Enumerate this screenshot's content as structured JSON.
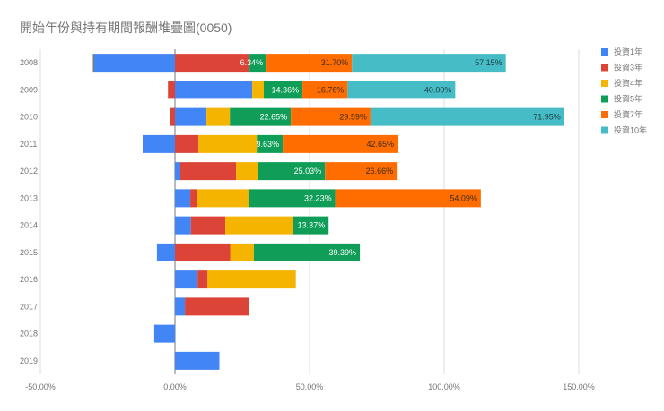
{
  "chart_data": {
    "type": "bar",
    "orientation": "horizontal",
    "stacked": true,
    "title": "開始年份與持有期間報酬堆疊圖(0050)",
    "xlabel": "",
    "ylabel": "",
    "xlim": [
      -50,
      150
    ],
    "x_ticks": [
      "-50.00%",
      "0.00%",
      "50.00%",
      "100.00%",
      "150.00%"
    ],
    "x_tick_values": [
      -50,
      0,
      50,
      100,
      150
    ],
    "grid": true,
    "legend_position": "right",
    "categories": [
      "2008",
      "2009",
      "2010",
      "2011",
      "2012",
      "2013",
      "2014",
      "2015",
      "2016",
      "2017",
      "2018",
      "2019"
    ],
    "series": [
      {
        "name": "投資1年",
        "color": "#4285F4",
        "show_labels": false,
        "values": [
          -30.4,
          28.7,
          11.7,
          -12.0,
          2.0,
          5.7,
          5.9,
          -6.7,
          8.4,
          3.7,
          -7.7,
          16.5
        ]
      },
      {
        "name": "投資3年",
        "color": "#DB4437",
        "show_labels": false,
        "values": [
          27.7,
          -2.6,
          -1.7,
          8.7,
          20.7,
          2.3,
          12.8,
          20.5,
          3.7,
          23.7,
          null,
          null
        ]
      },
      {
        "name": "投資4年",
        "color": "#F4B400",
        "show_labels": false,
        "values": [
          -0.5,
          4.3,
          8.7,
          21.7,
          8.0,
          19.3,
          25.0,
          8.8,
          32.8,
          null,
          null,
          null
        ]
      },
      {
        "name": "投資5年",
        "color": "#0F9D58",
        "show_labels": true,
        "label_color": "#ffffff",
        "values": [
          6.34,
          14.36,
          22.65,
          9.63,
          25.03,
          32.23,
          13.37,
          39.39,
          null,
          null,
          null,
          null
        ]
      },
      {
        "name": "投資7年",
        "color": "#FF6D01",
        "show_labels": true,
        "label_color": "#3c2a1a",
        "values": [
          31.7,
          16.76,
          29.59,
          42.65,
          26.66,
          54.09,
          null,
          null,
          null,
          null,
          null,
          null
        ]
      },
      {
        "name": "投資10年",
        "color": "#46BDC6",
        "show_labels": true,
        "label_color": "#1f3b40",
        "values": [
          57.15,
          40.0,
          71.95,
          null,
          null,
          null,
          null,
          null,
          null,
          null,
          null,
          null
        ]
      }
    ]
  }
}
